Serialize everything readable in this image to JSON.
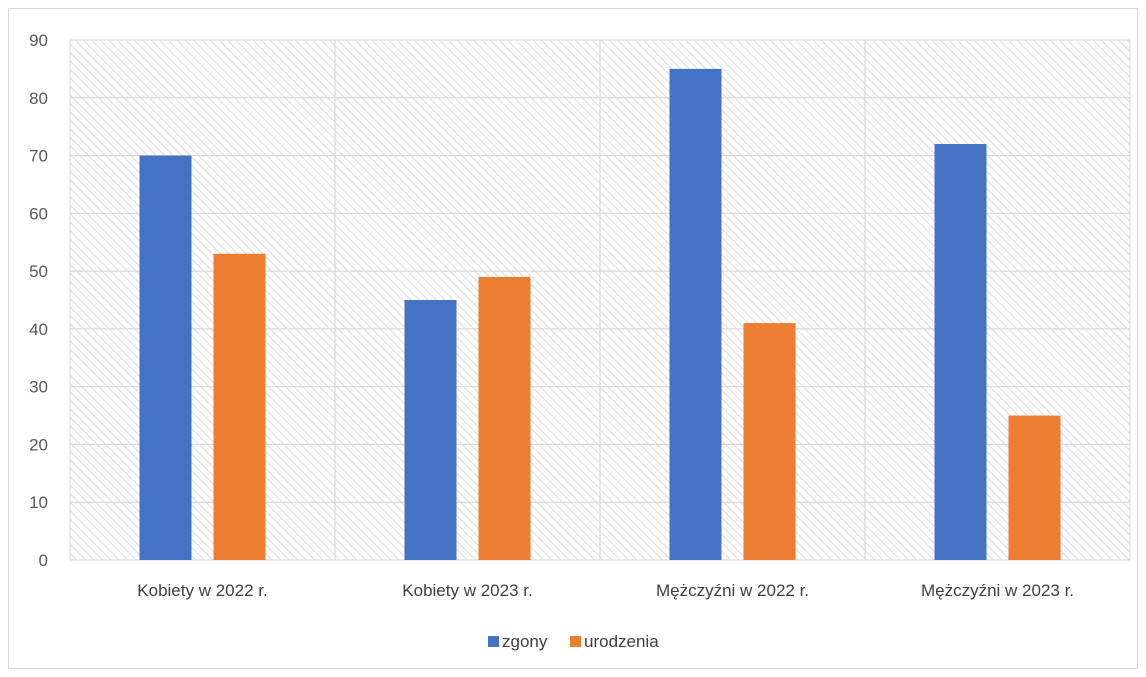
{
  "chart_data": {
    "type": "bar",
    "categories": [
      "Kobiety w 2022 r.",
      "Kobiety w 2023 r.",
      "Mężczyźni w 2022 r.",
      "Mężczyźni w 2023 r."
    ],
    "series": [
      {
        "name": "zgony",
        "values": [
          70,
          45,
          85,
          72
        ],
        "color": "#4472c4"
      },
      {
        "name": "urodzenia",
        "values": [
          53,
          49,
          41,
          25
        ],
        "color": "#ed7d31"
      }
    ],
    "title": "",
    "xlabel": "",
    "ylabel": "",
    "ylim": [
      0,
      90
    ],
    "yticks": [
      0,
      10,
      20,
      30,
      40,
      50,
      60,
      70,
      80,
      90
    ],
    "grid": true,
    "plot_background": "hatched",
    "legend_position": "bottom"
  }
}
